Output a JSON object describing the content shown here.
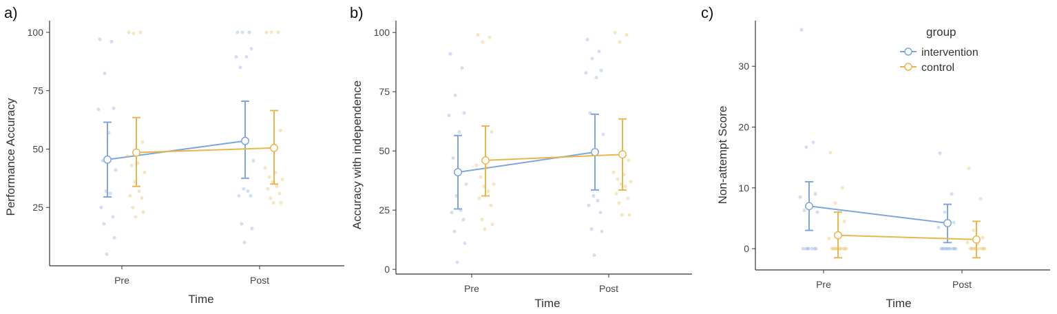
{
  "colors": {
    "intervention": "#7fa6dc",
    "control": "#e8b64c",
    "axis": "#333333"
  },
  "legend": {
    "title": "group",
    "items": [
      {
        "key": "intervention",
        "label": "intervention"
      },
      {
        "key": "control",
        "label": "control"
      }
    ]
  },
  "chart_data": [
    {
      "type": "line",
      "panel_label": "a)",
      "xlabel": "Time",
      "ylabel": "Performance Accuracy",
      "categories": [
        "Pre",
        "Post"
      ],
      "ylim": [
        0,
        105
      ],
      "yticks": [
        25,
        50,
        75,
        100
      ],
      "series": [
        {
          "name": "intervention",
          "means": [
            45.5,
            53.5
          ],
          "ci_low": [
            29.5,
            37.5
          ],
          "ci_high": [
            61.5,
            70.5
          ],
          "points": [
            [
              97,
              96,
              82.5,
              67.5,
              67,
              57,
              45,
              41,
              32,
              31,
              25,
              21,
              18,
              12,
              5
            ],
            [
              100,
              100,
              100,
              93,
              89.5,
              89.5,
              85,
              45,
              33,
              32,
              30,
              30,
              18,
              16,
              10
            ]
          ]
        },
        {
          "name": "control",
          "means": [
            48.5,
            50.5
          ],
          "ci_low": [
            34,
            35
          ],
          "ci_high": [
            63.5,
            66.5
          ],
          "points": [
            [
              100,
              100,
              99.5,
              53,
              47,
              44,
              43,
              40,
              36,
              32,
              30,
              29,
              25,
              23,
              21
            ],
            [
              100,
              100,
              100,
              58,
              42,
              40,
              38,
              37,
              36,
              34,
              33,
              31,
              29,
              27,
              27
            ]
          ]
        }
      ]
    },
    {
      "type": "line",
      "panel_label": "b)",
      "xlabel": "Time",
      "ylabel": "Accuracy with independence",
      "categories": [
        "Pre",
        "Post"
      ],
      "ylim": [
        -2,
        105
      ],
      "yticks": [
        0,
        25,
        50,
        75,
        100
      ],
      "series": [
        {
          "name": "intervention",
          "means": [
            41,
            49.5
          ],
          "ci_low": [
            25.5,
            33.5
          ],
          "ci_high": [
            56.5,
            65.5
          ],
          "points": [
            [
              91,
              85,
              73.5,
              66,
              65,
              58,
              47,
              36,
              31,
              25,
              24,
              21,
              16,
              11,
              3
            ],
            [
              97,
              92,
              89,
              84,
              83,
              81,
              66,
              57,
              31,
              29,
              27,
              24,
              17,
              16,
              6
            ]
          ]
        },
        {
          "name": "control",
          "means": [
            46,
            48.5
          ],
          "ci_low": [
            31,
            33.5
          ],
          "ci_high": [
            60.5,
            63.5
          ],
          "points": [
            [
              99,
              98,
              96,
              58,
              44,
              43,
              39,
              36,
              35,
              33,
              30,
              27,
              21,
              19,
              17
            ],
            [
              100,
              99,
              96,
              46,
              41,
              40,
              38,
              37,
              36,
              35,
              32,
              30,
              28,
              23,
              23
            ]
          ]
        }
      ]
    },
    {
      "type": "line",
      "panel_label": "c)",
      "xlabel": "Time",
      "ylabel": "Non-attempt Score",
      "categories": [
        "Pre",
        "Post"
      ],
      "ylim": [
        -3.5,
        37.5
      ],
      "yticks": [
        0,
        10,
        20,
        30
      ],
      "series": [
        {
          "name": "intervention",
          "means": [
            7,
            4.2
          ],
          "ci_low": [
            3,
            1
          ],
          "ci_high": [
            11,
            7.3
          ],
          "points": [
            [
              36,
              17.5,
              16.7,
              9,
              8.5,
              7,
              6.3,
              6,
              0,
              0,
              0,
              0,
              0,
              0,
              0
            ],
            [
              15.7,
              9,
              6,
              4.3,
              3.5,
              0,
              0,
              0,
              0,
              0,
              0,
              0,
              0,
              0,
              0
            ]
          ]
        },
        {
          "name": "control",
          "means": [
            2.2,
            1.5
          ],
          "ci_low": [
            -1.5,
            -1.5
          ],
          "ci_high": [
            6,
            4.5
          ],
          "points": [
            [
              15.8,
              10,
              7.5,
              4.5,
              1.7,
              0,
              0,
              0,
              0,
              0,
              0,
              0,
              0,
              0,
              0
            ],
            [
              13.2,
              8.2,
              3,
              1.8,
              1,
              0.8,
              0,
              0,
              0,
              0,
              0,
              0,
              0,
              0,
              0
            ]
          ]
        }
      ]
    }
  ]
}
